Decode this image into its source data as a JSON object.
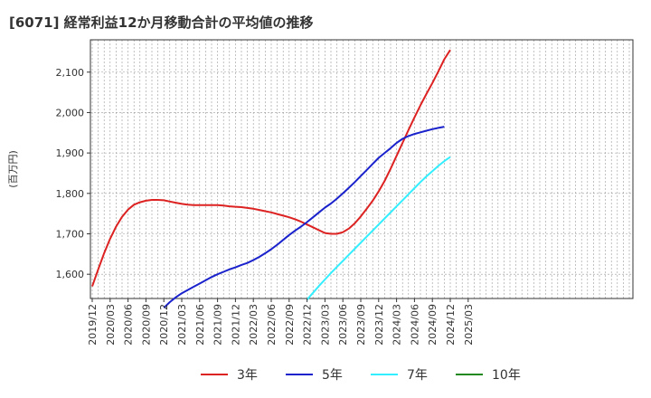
{
  "chart_data": {
    "type": "line",
    "title": "[6071]  経常利益12か月移動合計の平均値の推移",
    "ylabel": "(百万円)",
    "xlabel": "",
    "ylim": [
      1540,
      2180
    ],
    "yticks": [
      1600,
      1700,
      1800,
      1900,
      2000,
      2100
    ],
    "ytick_labels": [
      "1,600",
      "1,700",
      "1,800",
      "1,900",
      "2,000",
      "2,100"
    ],
    "x_labels": [
      "2019/12",
      "2020/03",
      "2020/06",
      "2020/09",
      "2020/12",
      "2021/03",
      "2021/06",
      "2021/09",
      "2021/12",
      "2022/03",
      "2022/06",
      "2022/09",
      "2022/12",
      "2023/03",
      "2023/06",
      "2023/09",
      "2023/12",
      "2024/03",
      "2024/06",
      "2024/09",
      "2024/12",
      "2025/03"
    ],
    "series": [
      {
        "name": "3年",
        "color": "#dd2222",
        "start_index": 0,
        "values": [
          1570,
          1612,
          1652,
          1688,
          1718,
          1742,
          1760,
          1772,
          1778,
          1782,
          1784,
          1784,
          1783,
          1780,
          1777,
          1774,
          1772,
          1771,
          1771,
          1771,
          1771,
          1771,
          1770,
          1768,
          1767,
          1766,
          1764,
          1762,
          1759,
          1756,
          1753,
          1749,
          1745,
          1741,
          1736,
          1730,
          1723,
          1716,
          1709,
          1702,
          1700,
          1700,
          1704,
          1713,
          1726,
          1743,
          1762,
          1782,
          1805,
          1831,
          1861,
          1893,
          1925,
          1957,
          1988,
          2018,
          2046,
          2073,
          2102,
          2132,
          2155
        ]
      },
      {
        "name": "5年",
        "color": "#1a22cc",
        "start_index": 12,
        "values": [
          1517,
          1531,
          1543,
          1553,
          1561,
          1569,
          1577,
          1585,
          1593,
          1600,
          1606,
          1612,
          1617,
          1623,
          1628,
          1635,
          1643,
          1652,
          1662,
          1673,
          1685,
          1697,
          1708,
          1718,
          1729,
          1741,
          1753,
          1765,
          1775,
          1787,
          1800,
          1814,
          1828,
          1843,
          1858,
          1873,
          1888,
          1900,
          1912,
          1925,
          1935,
          1942,
          1947,
          1951,
          1955,
          1959,
          1962,
          1965
        ]
      },
      {
        "name": "7年",
        "color": "#33eeff",
        "start_index": 36,
        "values": [
          1537,
          1554,
          1571,
          1587,
          1603,
          1618,
          1633,
          1648,
          1663,
          1678,
          1693,
          1708,
          1723,
          1738,
          1753,
          1768,
          1783,
          1798,
          1813,
          1828,
          1842,
          1855,
          1868,
          1880,
          1890
        ]
      },
      {
        "name": "10年",
        "color": "#228822",
        "start_index": 0,
        "values": []
      }
    ]
  }
}
